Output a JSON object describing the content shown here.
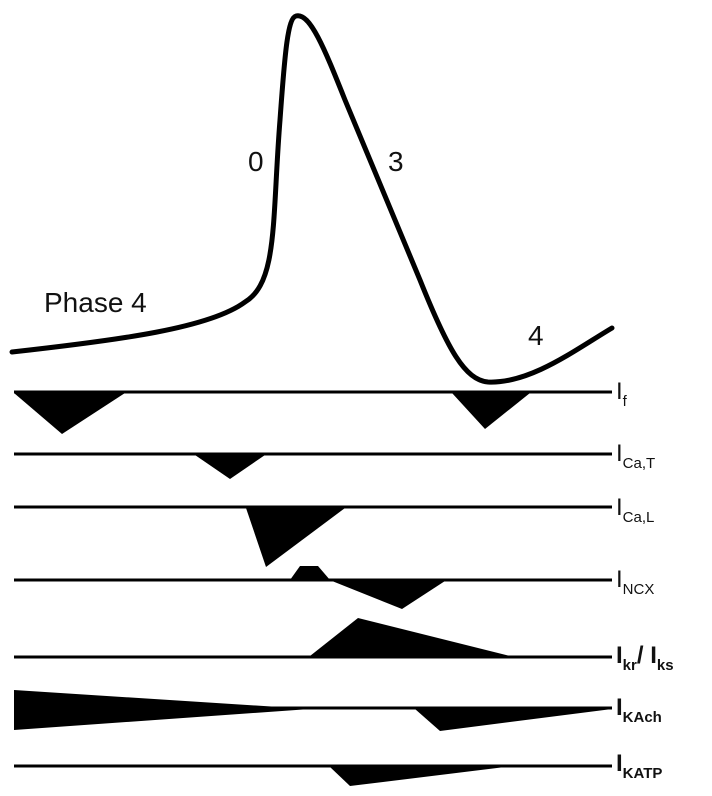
{
  "phase_labels": {
    "phase4_left": "Phase 4",
    "phase0": "0",
    "phase3": "3",
    "phase4_right": "4"
  },
  "currents": [
    {
      "id": "if",
      "main": "I",
      "sub": "f"
    },
    {
      "id": "icat",
      "main": "I",
      "sub": "Ca,T"
    },
    {
      "id": "ical",
      "main": "I",
      "sub": "Ca,L"
    },
    {
      "id": "incx",
      "main": "I",
      "sub": "NCX"
    },
    {
      "id": "ikr",
      "main": "I",
      "sub": "kr",
      "sep": "/",
      "main2": "I",
      "sub2": "ks"
    },
    {
      "id": "ikach",
      "main": "I",
      "sub": "KAch"
    },
    {
      "id": "ikatp",
      "main": "I",
      "sub": "KATP"
    }
  ],
  "colors": {
    "ink": "#000000",
    "background": "#ffffff"
  }
}
